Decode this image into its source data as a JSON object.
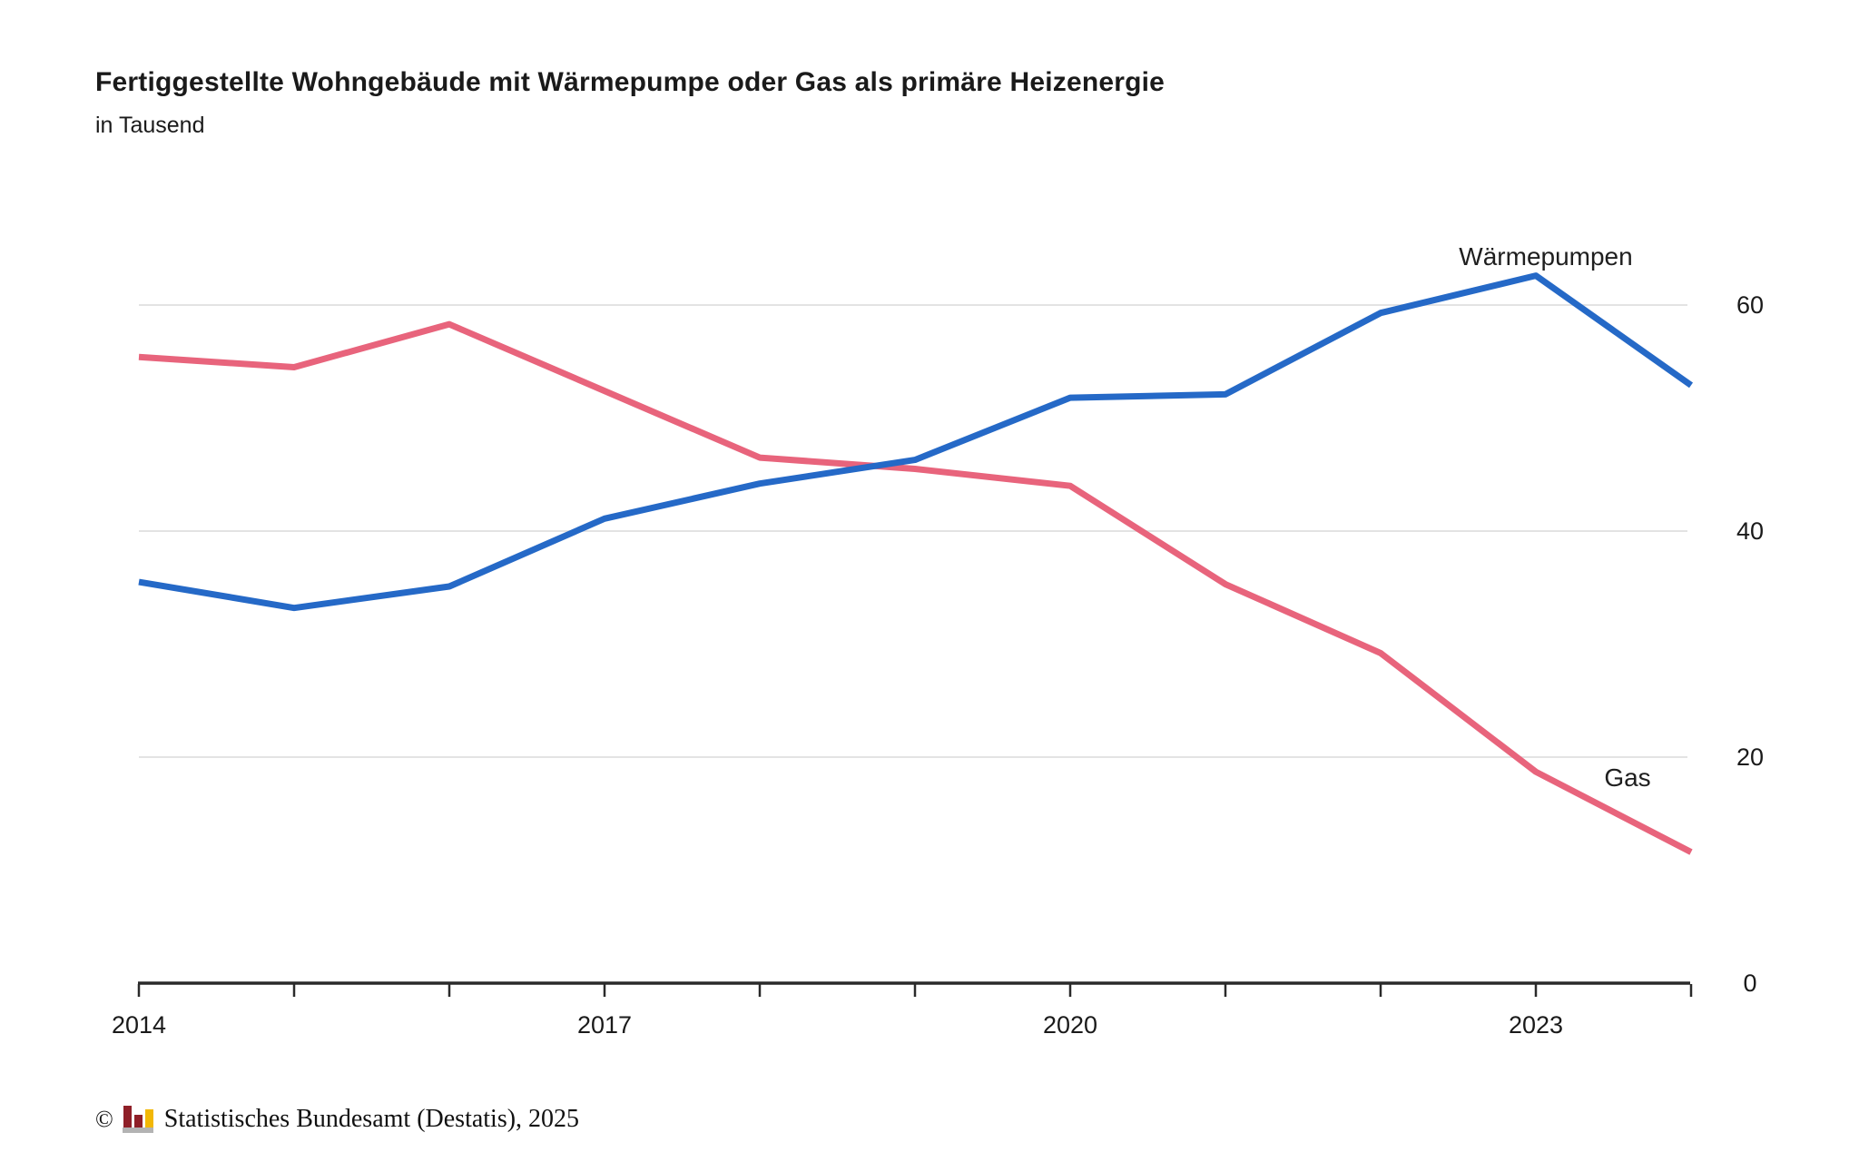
{
  "header": {
    "title": "Fertiggestellte Wohngebäude mit Wärmepumpe oder Gas als primäre Heizenergie",
    "subtitle": "in Tausend"
  },
  "series_labels": {
    "heat_pumps": "Wärmepumpen",
    "gas": "Gas"
  },
  "footer": {
    "copyright": "©",
    "source": "Statistisches Bundesamt (Destatis), 2025"
  },
  "colors": {
    "heat_pumps": "#2569c7",
    "gas": "#e8647c",
    "grid": "#e3e3e3",
    "axis": "#2a2a2a",
    "tick_label": "#1a1a1a"
  },
  "chart_data": {
    "type": "line",
    "title": "Fertiggestellte Wohngebäude mit Wärmepumpe oder Gas als primäre Heizenergie",
    "ylabel_unit": "in Tausend",
    "x": [
      2014,
      2015,
      2016,
      2017,
      2018,
      2019,
      2020,
      2021,
      2022,
      2023,
      2024
    ],
    "xticks_all_years": true,
    "xtick_labels": [
      "2014",
      "2017",
      "2020",
      "2023"
    ],
    "xtick_label_years": [
      2014,
      2017,
      2020,
      2023
    ],
    "yticks": [
      0,
      20,
      40,
      60
    ],
    "ylim": [
      0,
      67
    ],
    "grid": "horizontal",
    "legend": "inline labels at right end of lines",
    "series": [
      {
        "name": "Wärmepumpen",
        "color": "#2569c7",
        "values": [
          35.5,
          33.2,
          35.1,
          41.1,
          44.2,
          46.3,
          51.8,
          52.1,
          59.3,
          62.6,
          52.9
        ]
      },
      {
        "name": "Gas",
        "color": "#e8647c",
        "values": [
          55.4,
          54.5,
          58.3,
          52.4,
          46.5,
          45.5,
          44.0,
          35.3,
          29.2,
          18.7,
          11.6
        ]
      }
    ]
  }
}
